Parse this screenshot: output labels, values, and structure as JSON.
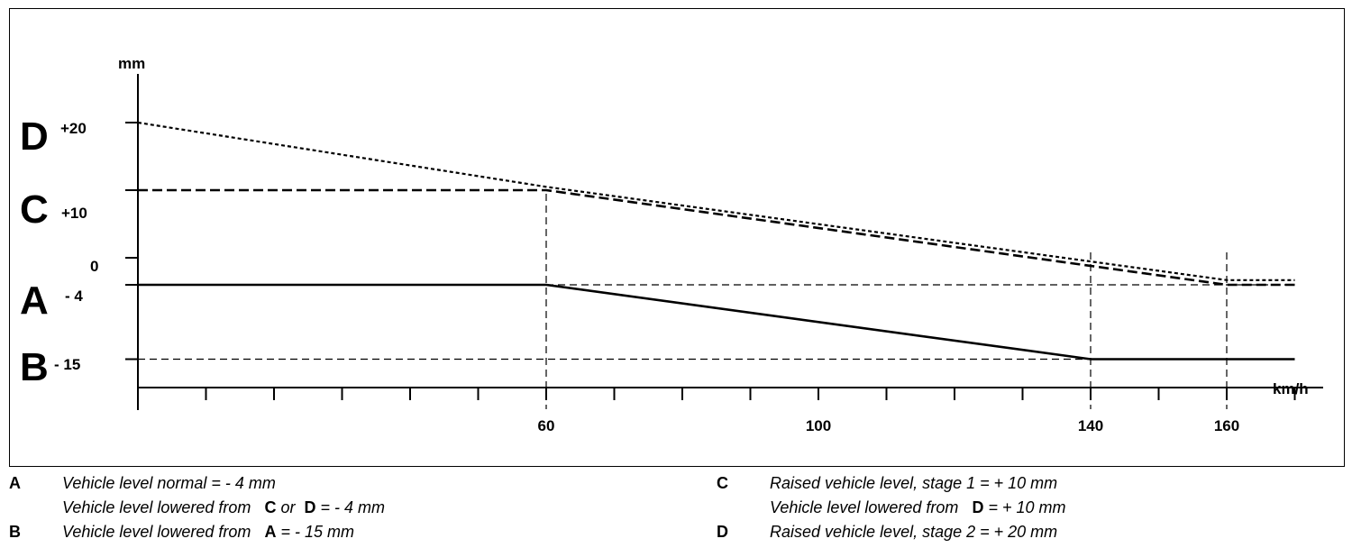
{
  "chart_data": {
    "type": "line",
    "xlabel": "km/h",
    "ylabel": "mm",
    "x_ticks_labeled": [
      60,
      100,
      140,
      160
    ],
    "y_tick_values": [
      20,
      10,
      0,
      -4,
      -15
    ],
    "level_labels": [
      {
        "letter": "D",
        "value_text": "+20",
        "value": 20
      },
      {
        "letter": "C",
        "value_text": "+10",
        "value": 10
      },
      {
        "letter": "",
        "value_text": "0",
        "value": 0
      },
      {
        "letter": "A",
        "value_text": "- 4",
        "value": -4
      },
      {
        "letter": "B",
        "value_text": "- 15",
        "value": -15
      }
    ],
    "xlim": [
      0,
      173
    ],
    "ylim": [
      -20,
      25
    ],
    "series": [
      {
        "style": "solid",
        "points": [
          [
            0,
            -4
          ],
          [
            60,
            -4
          ],
          [
            140,
            -15
          ],
          [
            170,
            -15
          ]
        ]
      },
      {
        "style": "dashed",
        "points": [
          [
            0,
            10
          ],
          [
            60,
            10
          ],
          [
            160,
            -4
          ],
          [
            170,
            -4
          ]
        ]
      },
      {
        "style": "dotted",
        "points": [
          [
            0,
            20
          ],
          [
            60,
            10.5
          ],
          [
            160,
            -3.3
          ],
          [
            170,
            -3.3
          ]
        ]
      }
    ],
    "reference_lines": {
      "horizontal": [
        {
          "y": -4,
          "from": 60,
          "to": 170
        },
        {
          "y": -15,
          "from": 0,
          "to": 140
        }
      ],
      "vertical": [
        60,
        140,
        160
      ]
    }
  },
  "legend": {
    "left": [
      {
        "key": "A",
        "lines": [
          [
            {
              "t": "Vehicle level normal = - 4 mm",
              "b": false
            }
          ],
          [
            {
              "t": "Vehicle level lowered from   ",
              "b": false
            },
            {
              "t": "C",
              "b": true
            },
            {
              "t": " or  ",
              "b": false
            },
            {
              "t": "D",
              "b": true
            },
            {
              "t": " = - 4 mm",
              "b": false
            }
          ]
        ]
      },
      {
        "key": "B",
        "lines": [
          [
            {
              "t": "Vehicle level lowered from   ",
              "b": false
            },
            {
              "t": "A",
              "b": true
            },
            {
              "t": " = - 15 mm",
              "b": false
            }
          ]
        ]
      }
    ],
    "right": [
      {
        "key": "C",
        "lines": [
          [
            {
              "t": "Raised vehicle level, stage 1 = + 10 mm",
              "b": false
            }
          ],
          [
            {
              "t": "Vehicle level lowered from   ",
              "b": false
            },
            {
              "t": "D",
              "b": true
            },
            {
              "t": " = + 10 mm",
              "b": false
            }
          ]
        ]
      },
      {
        "key": "D",
        "lines": [
          [
            {
              "t": "Raised vehicle level, stage 2 = + 20 mm",
              "b": false
            }
          ]
        ]
      }
    ]
  }
}
